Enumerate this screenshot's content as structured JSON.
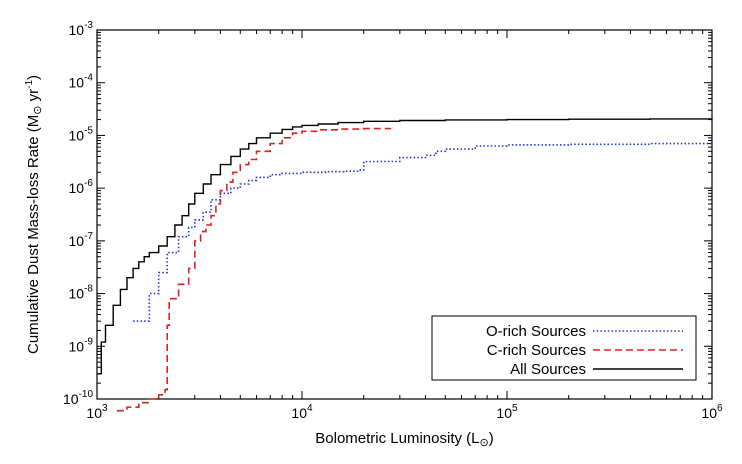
{
  "chart_data": {
    "type": "line",
    "xlabel": "Bolometric Luminosity (L",
    "xlabel_suffix": ")",
    "ylabel": "Cumulative Dust Mass-loss Rate (M",
    "ylabel_unit": "yr",
    "ylabel_exp": "-1",
    "ylabel_suffix": ")",
    "x_scale": "log",
    "y_scale": "log",
    "xlim": [
      1000,
      1000000
    ],
    "ylim": [
      1e-10,
      0.001
    ],
    "x_ticks": [
      {
        "base": "10",
        "exp": "3",
        "value": 1000
      },
      {
        "base": "10",
        "exp": "4",
        "value": 10000
      },
      {
        "base": "10",
        "exp": "5",
        "value": 100000
      },
      {
        "base": "10",
        "exp": "6",
        "value": 1000000
      }
    ],
    "y_ticks": [
      {
        "base": "10",
        "exp": "-10",
        "value": 1e-10
      },
      {
        "base": "10",
        "exp": "-9",
        "value": 1e-09
      },
      {
        "base": "10",
        "exp": "-8",
        "value": 1e-08
      },
      {
        "base": "10",
        "exp": "-7",
        "value": 1e-07
      },
      {
        "base": "10",
        "exp": "-6",
        "value": 1e-06
      },
      {
        "base": "10",
        "exp": "-5",
        "value": 1e-05
      },
      {
        "base": "10",
        "exp": "-4",
        "value": 0.0001
      },
      {
        "base": "10",
        "exp": "-3",
        "value": 0.001
      }
    ],
    "grid": false,
    "legend_position": "bottom-right",
    "series": [
      {
        "name": "O-rich Sources",
        "color": "#2233dd",
        "style": "dotted",
        "x": [
          1500,
          1800,
          2000,
          2200,
          2500,
          2800,
          3000,
          3300,
          3600,
          4000,
          4500,
          5000,
          5500,
          6000,
          7000,
          8000,
          10000,
          13000,
          16000,
          19000,
          20000,
          30000,
          40000,
          45000,
          50000,
          70000,
          100000,
          200000,
          500000,
          1000000
        ],
        "y": [
          3e-09,
          1e-08,
          2.5e-08,
          6e-08,
          1.2e-07,
          1.8e-07,
          2.5e-07,
          3.5e-07,
          6e-07,
          8e-07,
          1e-06,
          1.2e-06,
          1.4e-06,
          1.6e-06,
          1.8e-06,
          1.9e-06,
          2e-06,
          2.05e-06,
          2.1e-06,
          2.2e-06,
          3.2e-06,
          3.8e-06,
          4.2e-06,
          5e-06,
          5.5e-06,
          6.3e-06,
          6.6e-06,
          6.8e-06,
          7e-06,
          7.2e-06
        ]
      },
      {
        "name": "C-rich Sources",
        "color": "#dd2222",
        "style": "dashed",
        "x": [
          1250,
          1400,
          1600,
          1800,
          2000,
          2150,
          2200,
          2250,
          2500,
          2800,
          3000,
          3200,
          3400,
          3600,
          3800,
          4000,
          4300,
          4600,
          5000,
          5500,
          6000,
          7000,
          8000,
          9000,
          10000,
          12000,
          15000,
          20000,
          27000
        ],
        "y": [
          6e-11,
          7e-11,
          8.5e-11,
          1e-10,
          1.2e-10,
          1.5e-10,
          2.5e-09,
          8e-09,
          1.5e-08,
          3e-08,
          1e-07,
          1.5e-07,
          2e-07,
          3e-07,
          5e-07,
          9e-07,
          1.3e-06,
          2e-06,
          2.8e-06,
          3.5e-06,
          5e-06,
          7e-06,
          9e-06,
          1.1e-05,
          1.2e-05,
          1.28e-05,
          1.32e-05,
          1.35e-05,
          1.38e-05
        ]
      },
      {
        "name": "All Sources",
        "color": "#000000",
        "style": "solid",
        "x": [
          1000,
          1050,
          1100,
          1200,
          1300,
          1400,
          1500,
          1600,
          1700,
          1800,
          2000,
          2200,
          2400,
          2600,
          2800,
          3000,
          3300,
          3600,
          4000,
          4500,
          5000,
          5500,
          6000,
          7000,
          8000,
          9000,
          10000,
          12000,
          15000,
          20000,
          30000,
          50000,
          100000,
          200000,
          500000,
          1000000
        ],
        "y": [
          3e-10,
          1.2e-09,
          2.5e-09,
          6e-09,
          1.2e-08,
          2e-08,
          3e-08,
          4e-08,
          5e-08,
          6e-08,
          8e-08,
          1.2e-07,
          2e-07,
          3e-07,
          5e-07,
          8e-07,
          1.2e-06,
          1.8e-06,
          2.8e-06,
          4e-06,
          5.5e-06,
          7e-06,
          9e-06,
          1.1e-05,
          1.3e-05,
          1.45e-05,
          1.55e-05,
          1.65e-05,
          1.75e-05,
          1.85e-05,
          1.92e-05,
          1.97e-05,
          2e-05,
          2.03e-05,
          2.06e-05,
          2.08e-05
        ]
      }
    ]
  }
}
